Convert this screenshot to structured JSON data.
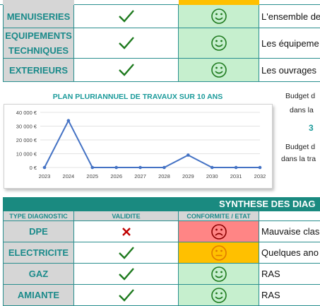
{
  "top_rows": [
    {
      "label": "MENUISERIES",
      "face": "happy",
      "desc": "L'ensemble de"
    },
    {
      "label": "EQUIPEMENTS\nTECHNIQUES",
      "face": "happy",
      "desc": "Les équipeme"
    },
    {
      "label": "EXTERIEURS",
      "face": "happy",
      "desc": "Les ouvrages"
    }
  ],
  "chart_data": {
    "type": "line",
    "title": "PLAN PLURIANNUEL DE TRAVAUX SUR 10 ANS",
    "x": [
      "2023",
      "2024",
      "2025",
      "2026",
      "2027",
      "2028",
      "2029",
      "2030",
      "2031",
      "2032"
    ],
    "values": [
      0,
      34000,
      0,
      0,
      0,
      0,
      9000,
      0,
      0,
      0
    ],
    "y_ticks": [
      "0 €",
      "10 000 €",
      "20 000 €",
      "30 000 €",
      "40 000 €"
    ],
    "ylim": [
      0,
      40000
    ],
    "line_color": "#4472c4",
    "grid": true
  },
  "side": {
    "budget1_line1": "Budget d",
    "budget1_line2": "dans la",
    "big_value": "3",
    "budget2_line1": "Budget d",
    "budget2_line2": "dans la tra"
  },
  "synthese": {
    "title": "SYNTHESE DES DIAG",
    "col_type": "TYPE DIAGNOSTIC",
    "col_validite": "VALIDITE",
    "col_conforme": "CONFORMITE / ETAT",
    "rows": [
      {
        "label": "DPE",
        "valid": "cross",
        "face": "sad",
        "color": "red",
        "desc": "Mauvaise clas"
      },
      {
        "label": "ELECTRICITE",
        "valid": "check",
        "face": "neutral",
        "color": "orange",
        "desc": "Quelques ano"
      },
      {
        "label": "GAZ",
        "valid": "check",
        "face": "happy",
        "color": "green",
        "desc": "RAS"
      },
      {
        "label": "AMIANTE",
        "valid": "check",
        "face": "happy",
        "color": "green",
        "desc": "RAS"
      }
    ]
  },
  "colors": {
    "teal": "#1a8a8a",
    "green_fill": "#c6efce",
    "red_fill": "#ff8585",
    "orange_fill": "#ffc000",
    "check_green": "#1e7a1e",
    "cross_red": "#c00000"
  }
}
